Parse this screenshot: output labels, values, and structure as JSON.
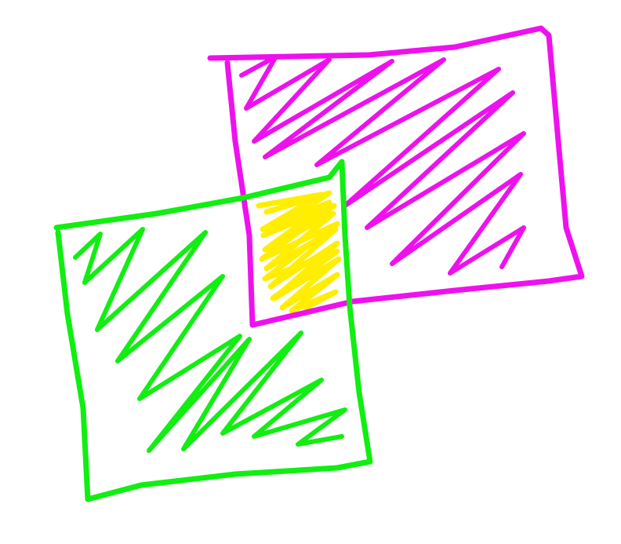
{
  "drawing": {
    "shapes": [
      {
        "name": "magenta-square",
        "color": "#ee11ee"
      },
      {
        "name": "green-square",
        "color": "#11ee11"
      },
      {
        "name": "overlap-region",
        "color": "#ffee00"
      }
    ]
  }
}
